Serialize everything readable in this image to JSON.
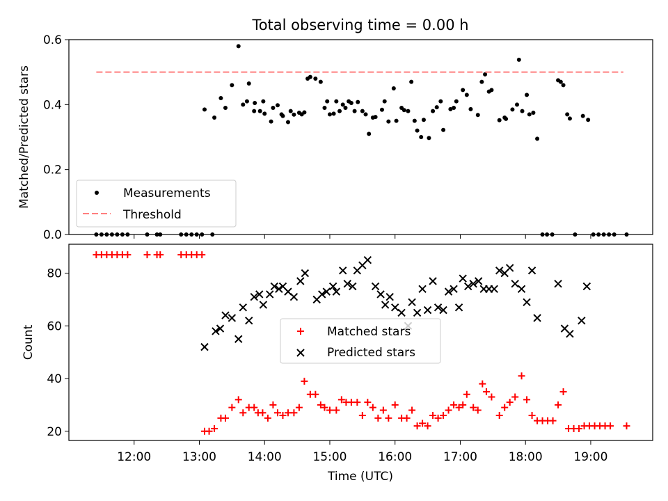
{
  "chart_data": [
    {
      "type": "scatter",
      "title": "Total observing time = 0.00 h",
      "xlabel": "",
      "ylabel": "Matched/Predicted stars",
      "xlim": [
        11.0,
        19.95
      ],
      "ylim": [
        0.0,
        0.6
      ],
      "yticks": [
        0.0,
        0.2,
        0.4,
        0.6
      ],
      "ytick_labels": [
        "0.0",
        "0.2",
        "0.4",
        "0.6"
      ],
      "legend_position": "lower-left",
      "legend": [
        "Measurements",
        "Threshold"
      ],
      "series": [
        {
          "name": "Measurements",
          "color": "#000000",
          "x": [
            11.42,
            11.5,
            11.58,
            11.66,
            11.74,
            11.82,
            11.9,
            12.2,
            12.35,
            12.4,
            12.72,
            12.8,
            12.88,
            12.96,
            13.04,
            13.2,
            13.08,
            13.23,
            13.33,
            13.4,
            13.5,
            13.6,
            13.67,
            13.76,
            13.85,
            13.93,
            14.0,
            14.1,
            14.2,
            14.28,
            14.36,
            14.45,
            14.53,
            14.61,
            14.7,
            14.78,
            14.86,
            14.96,
            15.06,
            15.15,
            15.24,
            15.33,
            15.43,
            15.5,
            15.6,
            15.7,
            15.8,
            15.9,
            16.02,
            16.14,
            16.25,
            16.34,
            16.44,
            16.52,
            16.64,
            16.74,
            16.85,
            16.94,
            17.04,
            17.16,
            17.27,
            17.38,
            17.48,
            17.6,
            17.7,
            17.8,
            17.9,
            18.02,
            18.12,
            18.18,
            18.26,
            18.33,
            18.41,
            18.5,
            18.58,
            18.68,
            18.76,
            18.88,
            18.96,
            19.04,
            19.12,
            19.2,
            19.28,
            19.36,
            19.55,
            13.73,
            13.84,
            13.98,
            14.13,
            14.26,
            14.4,
            14.57,
            14.66,
            14.92,
            15.0,
            15.1,
            15.2,
            15.29,
            15.38,
            15.55,
            15.66,
            15.84,
            15.98,
            16.1,
            16.2,
            16.3,
            16.4,
            16.58,
            16.7,
            16.9,
            17.1,
            17.33,
            17.44,
            17.68,
            17.87,
            17.95,
            18.06,
            18.54,
            18.64
          ],
          "y": [
            0,
            0,
            0,
            0,
            0,
            0,
            0,
            0,
            0,
            0,
            0,
            0,
            0,
            0,
            0,
            0,
            0.385,
            0.36,
            0.42,
            0.39,
            0.46,
            0.58,
            0.4,
            0.465,
            0.405,
            0.38,
            0.372,
            0.348,
            0.398,
            0.365,
            0.346,
            0.369,
            0.375,
            0.376,
            0.485,
            0.48,
            0.47,
            0.41,
            0.372,
            0.38,
            0.39,
            0.405,
            0.408,
            0.38,
            0.31,
            0.362,
            0.384,
            0.348,
            0.35,
            0.383,
            0.47,
            0.32,
            0.353,
            0.297,
            0.392,
            0.322,
            0.386,
            0.41,
            0.445,
            0.386,
            0.368,
            0.493,
            0.445,
            0.352,
            0.356,
            0.385,
            0.538,
            0.43,
            0.375,
            0.295,
            0,
            0,
            0,
            0.475,
            0.46,
            0.357,
            0,
            0.365,
            0.353,
            0,
            0,
            0,
            0,
            0,
            0,
            0.41,
            0.38,
            0.41,
            0.39,
            0.37,
            0.38,
            0.37,
            0.48,
            0.39,
            0.37,
            0.41,
            0.4,
            0.41,
            0.38,
            0.37,
            0.36,
            0.41,
            0.45,
            0.39,
            0.38,
            0.35,
            0.3,
            0.38,
            0.41,
            0.39,
            0.43,
            0.47,
            0.44,
            0.36,
            0.4,
            0.38,
            0.37,
            0.47,
            0.37
          ]
        },
        {
          "name": "Threshold",
          "color": "#ff7f7f",
          "x": [
            11.42,
            19.5
          ],
          "y": [
            0.5,
            0.5
          ]
        }
      ]
    },
    {
      "type": "scatter",
      "title": "",
      "xlabel": "Time (UTC)",
      "ylabel": "Count",
      "xlim": [
        11.0,
        19.95
      ],
      "ylim": [
        16.5,
        91.0
      ],
      "yticks": [
        20,
        40,
        60,
        80
      ],
      "ytick_labels": [
        "20",
        "40",
        "60",
        "80"
      ],
      "xticks": [
        12,
        13,
        14,
        15,
        16,
        17,
        18,
        19
      ],
      "xtick_labels": [
        "12:00",
        "13:00",
        "14:00",
        "15:00",
        "16:00",
        "17:00",
        "18:00",
        "19:00"
      ],
      "legend_position": "center",
      "legend": [
        "Matched stars",
        "Predicted stars"
      ],
      "series": [
        {
          "name": "Matched stars",
          "color": "#ff0000",
          "x": [
            11.42,
            11.5,
            11.58,
            11.66,
            11.74,
            11.82,
            11.9,
            12.2,
            12.35,
            12.4,
            12.72,
            12.8,
            12.88,
            12.96,
            13.04,
            13.08,
            13.15,
            13.23,
            13.33,
            13.4,
            13.5,
            13.6,
            13.67,
            13.76,
            13.84,
            13.9,
            13.97,
            14.05,
            14.13,
            14.2,
            14.28,
            14.36,
            14.45,
            14.53,
            14.61,
            14.7,
            14.78,
            14.86,
            14.92,
            15.0,
            15.1,
            15.18,
            15.25,
            15.33,
            15.42,
            15.5,
            15.58,
            15.66,
            15.74,
            15.82,
            15.9,
            16.0,
            16.1,
            16.18,
            16.26,
            16.34,
            16.42,
            16.5,
            16.58,
            16.66,
            16.74,
            16.82,
            16.9,
            16.98,
            17.04,
            17.1,
            17.2,
            17.27,
            17.34,
            17.4,
            17.48,
            17.6,
            17.68,
            17.76,
            17.84,
            17.94,
            18.02,
            18.1,
            18.18,
            18.26,
            18.34,
            18.42,
            18.5,
            18.58,
            18.66,
            18.74,
            18.82,
            18.9,
            18.98,
            19.06,
            19.14,
            19.22,
            19.3,
            19.55
          ],
          "y": [
            87,
            87,
            87,
            87,
            87,
            87,
            87,
            87,
            87,
            87,
            87,
            87,
            87,
            87,
            87,
            20,
            20,
            21,
            25,
            25,
            29,
            32,
            27,
            29,
            29,
            27,
            27,
            25,
            30,
            27,
            26,
            27,
            27,
            29,
            39,
            34,
            34,
            30,
            29,
            28,
            28,
            32,
            31,
            31,
            31,
            26,
            31,
            29,
            25,
            28,
            25,
            30,
            25,
            25,
            28,
            22,
            23,
            22,
            26,
            25,
            26,
            28,
            30,
            29,
            30,
            34,
            29,
            28,
            38,
            35,
            33,
            26,
            29,
            31,
            33,
            41,
            32,
            26,
            24,
            24,
            24,
            24,
            30,
            35,
            21,
            21,
            21,
            22,
            22,
            22,
            22,
            22,
            22,
            22
          ]
        },
        {
          "name": "Predicted stars",
          "color": "#000000",
          "x": [
            13.08,
            13.25,
            13.32,
            13.4,
            13.5,
            13.6,
            13.67,
            13.76,
            13.84,
            13.92,
            13.98,
            14.08,
            14.15,
            14.22,
            14.28,
            14.36,
            14.45,
            14.55,
            14.62,
            14.8,
            14.88,
            14.95,
            15.05,
            15.1,
            15.2,
            15.27,
            15.35,
            15.42,
            15.5,
            15.58,
            15.7,
            15.78,
            15.85,
            15.92,
            16.0,
            16.1,
            16.2,
            16.26,
            16.34,
            16.42,
            16.5,
            16.58,
            16.66,
            16.74,
            16.82,
            16.9,
            16.98,
            17.04,
            17.12,
            17.2,
            17.28,
            17.36,
            17.44,
            17.52,
            17.6,
            17.68,
            17.76,
            17.84,
            17.94,
            18.02,
            18.1,
            18.18,
            18.5,
            18.6,
            18.68,
            18.86,
            18.94
          ],
          "y": [
            52,
            58,
            59,
            64,
            63,
            55,
            67,
            62,
            71,
            72,
            68,
            72,
            75,
            74,
            75,
            73,
            71,
            77,
            80,
            70,
            72,
            73,
            75,
            73,
            81,
            76,
            75,
            81,
            83,
            85,
            75,
            72,
            68,
            71,
            67,
            65,
            60,
            69,
            65,
            74,
            66,
            77,
            67,
            66,
            73,
            74,
            67,
            78,
            75,
            76,
            77,
            74,
            74,
            74,
            81,
            80,
            82,
            76,
            74,
            69,
            81,
            63,
            76,
            59,
            57,
            62,
            75
          ]
        }
      ]
    }
  ]
}
